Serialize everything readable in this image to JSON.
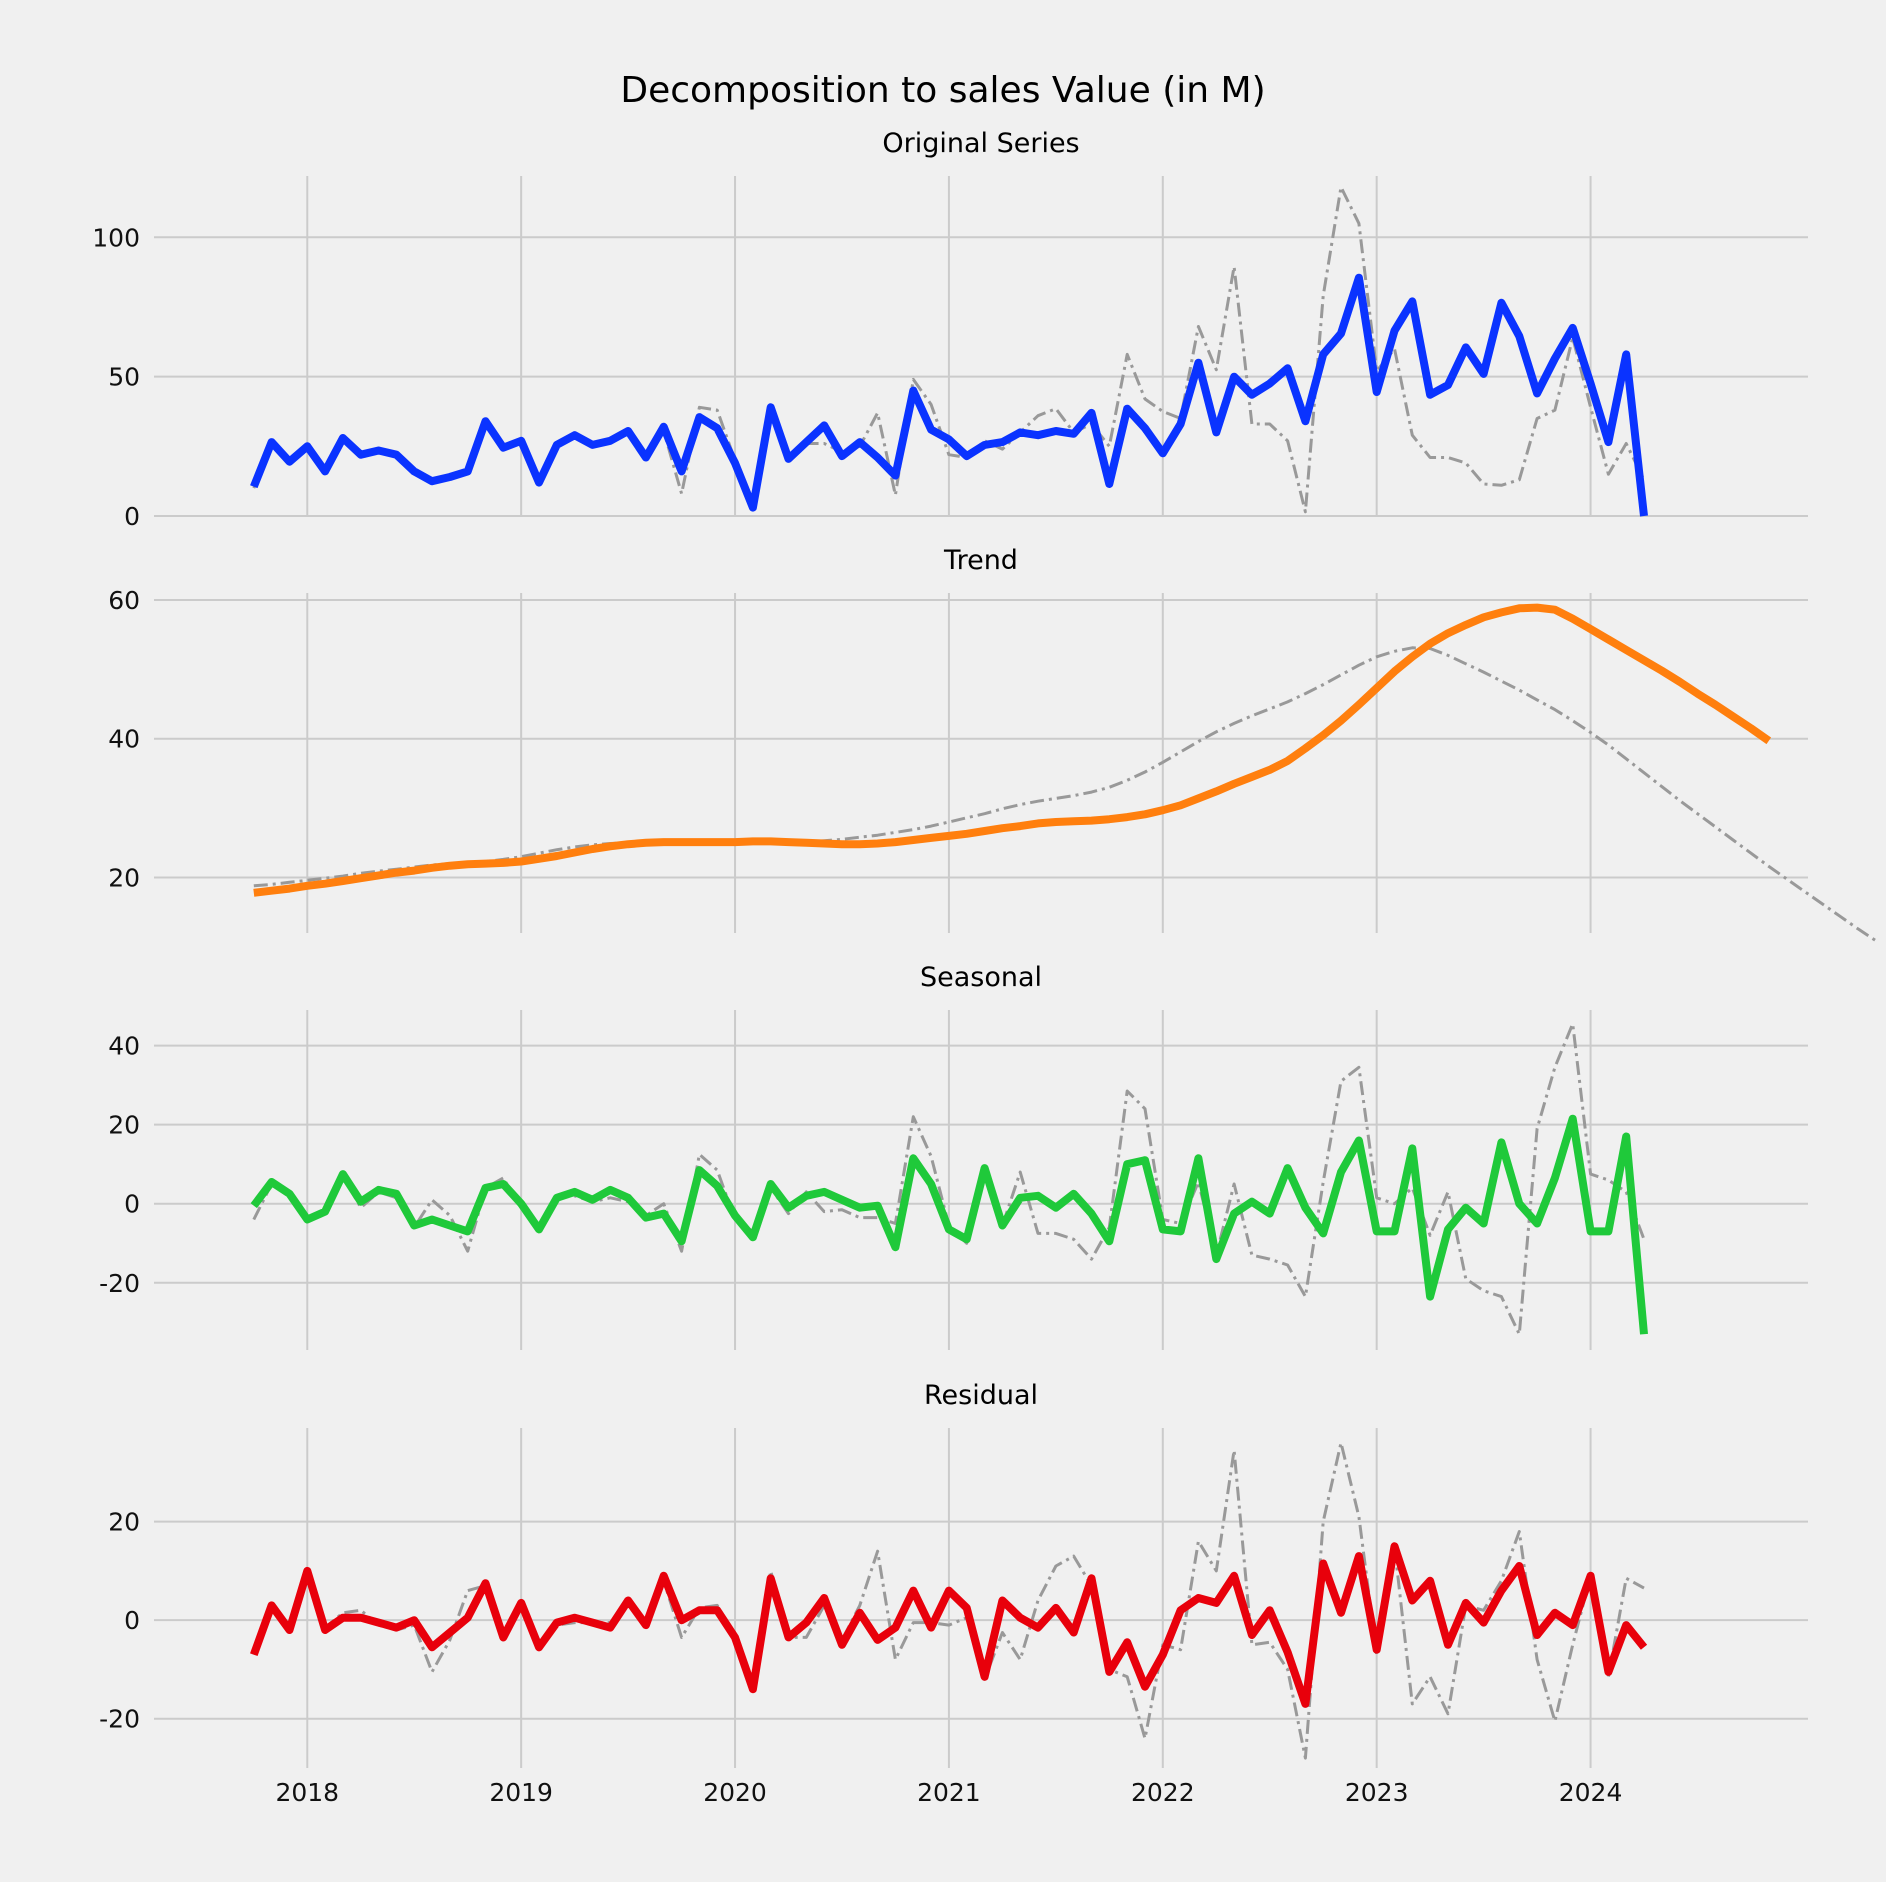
{
  "chart_data": {
    "type": "line",
    "title": "Decomposition to sales Value (in M)",
    "x_start": "2017-10",
    "x_frequency": "monthly",
    "x_tick_labels": [
      "2018",
      "2019",
      "2020",
      "2021",
      "2022",
      "2023",
      "2024"
    ],
    "grid": true,
    "legend": "none",
    "panels": [
      {
        "title": "Original Series",
        "ylim": [
          0,
          122
        ],
        "yticks": [
          0,
          50,
          100
        ],
        "ytick_labels": [
          "0",
          "50",
          "100"
        ],
        "series": [
          {
            "style": "solid",
            "color": "#0a33ff",
            "values": [
              10.5,
              26.5,
              19.5,
              25,
              16,
              28,
              22,
              23.5,
              22,
              16,
              12.5,
              14,
              16,
              34,
              24.5,
              27,
              12,
              25.5,
              29,
              25.5,
              27,
              30.5,
              21,
              32,
              16,
              35.5,
              31.5,
              19,
              3,
              39,
              20.5,
              26.5,
              32.5,
              21.5,
              26.5,
              21,
              14.5,
              45,
              31,
              27.5,
              21.5,
              25.5,
              26.5,
              30,
              29,
              30.5,
              29.5,
              37,
              11.5,
              38.5,
              31.5,
              22.5,
              33,
              55,
              30,
              50,
              43.5,
              47.5,
              53,
              34,
              58,
              65.5,
              85.5,
              44.5,
              66.5,
              77,
              43.5,
              47,
              60.5,
              51,
              76.5,
              64.5,
              44,
              56.5,
              67.5,
              47.5,
              26.5,
              58,
              0
            ]
          },
          {
            "style": "dashdot",
            "color": "#999999",
            "values": [
              10,
              25.5,
              19,
              24.5,
              16.5,
              27.5,
              21,
              23,
              22.5,
              16.5,
              12.5,
              14.5,
              16,
              33.5,
              24,
              27,
              12,
              25,
              28.5,
              25.5,
              27,
              30,
              21.5,
              30.5,
              8,
              39,
              38,
              20,
              3.5,
              38.5,
              20.5,
              26,
              26,
              23,
              25,
              37,
              7.5,
              49,
              40,
              22,
              21,
              27,
              24,
              30,
              36,
              38.5,
              30,
              33,
              25,
              58,
              42,
              37.5,
              35,
              68,
              52.5,
              89.5,
              33,
              33,
              27,
              1.5,
              79,
              118,
              105,
              52,
              60,
              29,
              21,
              21,
              19,
              11.5,
              11,
              13,
              35,
              38,
              64,
              39,
              15,
              26,
              13
            ]
          }
        ]
      },
      {
        "title": "Trend",
        "ylim": [
          12,
          61
        ],
        "yticks": [
          20,
          40,
          60
        ],
        "ytick_labels": [
          "20",
          "40",
          "60"
        ],
        "series": [
          {
            "style": "solid",
            "color": "#ff7f0e",
            "values": [
              17.8,
              18.1,
              18.4,
              18.8,
              19.1,
              19.5,
              19.9,
              20.3,
              20.7,
              21.0,
              21.4,
              21.7,
              21.9,
              22.0,
              22.1,
              22.3,
              22.7,
              23.1,
              23.6,
              24.1,
              24.5,
              24.8,
              25.0,
              25.1,
              25.1,
              25.1,
              25.1,
              25.1,
              25.2,
              25.2,
              25.1,
              25.0,
              24.9,
              24.8,
              24.8,
              24.9,
              25.1,
              25.4,
              25.7,
              26.0,
              26.3,
              26.7,
              27.1,
              27.4,
              27.8,
              28.0,
              28.1,
              28.2,
              28.4,
              28.7,
              29.1,
              29.7,
              30.4,
              31.4,
              32.4,
              33.5,
              34.5,
              35.5,
              36.8,
              38.6,
              40.5,
              42.6,
              44.9,
              47.3,
              49.7,
              51.8,
              53.7,
              55.2,
              56.4,
              57.5,
              58.2,
              58.8,
              58.9,
              58.6,
              57.3,
              55.8,
              54.3,
              52.8,
              51.3,
              49.8,
              48.2,
              46.5,
              44.9,
              43.2,
              41.5,
              39.7
            ]
          },
          {
            "style": "dashdot",
            "color": "#999999",
            "values": [
              18.8,
              19.0,
              19.3,
              19.6,
              19.9,
              20.2,
              20.6,
              20.9,
              21.2,
              21.5,
              21.8,
              22.0,
              22.1,
              22.3,
              22.6,
              23.0,
              23.5,
              24.0,
              24.4,
              24.7,
              24.9,
              25.0,
              25.0,
              25.0,
              25.0,
              25.0,
              25.0,
              25.0,
              25.0,
              25.0,
              25.0,
              25.1,
              25.3,
              25.5,
              25.8,
              26.1,
              26.5,
              26.9,
              27.4,
              28.0,
              28.6,
              29.2,
              29.9,
              30.5,
              31.0,
              31.4,
              31.8,
              32.3,
              33.0,
              34.0,
              35.2,
              36.6,
              38.1,
              39.6,
              41.0,
              42.2,
              43.3,
              44.3,
              45.3,
              46.5,
              47.8,
              49.2,
              50.6,
              51.8,
              52.6,
              53.1,
              53.0,
              52.0,
              50.8,
              49.6,
              48.3,
              47.0,
              45.6,
              44.2,
              42.6,
              40.9,
              39.1,
              37.1,
              35.1,
              33.1,
              31.1,
              29.2,
              27.3,
              25.4,
              23.5,
              21.6,
              19.8,
              18.0,
              16.2,
              14.4,
              12.6,
              10.9
            ]
          }
        ]
      },
      {
        "title": "Seasonal",
        "ylim": [
          -37,
          49
        ],
        "yticks": [
          -20,
          0,
          20,
          40
        ],
        "ytick_labels": [
          "-20",
          "0",
          "20",
          "40"
        ],
        "series": [
          {
            "style": "solid",
            "color": "#1fc93a",
            "values": [
              -0.5,
              5.5,
              2.5,
              -4,
              -2,
              7.5,
              0.5,
              3.5,
              2.5,
              -5.5,
              -4,
              -5.5,
              -7,
              4,
              5,
              0,
              -6.5,
              1.5,
              3,
              1,
              3.5,
              1.5,
              -3.5,
              -2.5,
              -9.5,
              8.5,
              4.5,
              -3,
              -8.5,
              5,
              -1,
              2,
              3,
              1,
              -1,
              -0.5,
              -11,
              11.5,
              5,
              -6.5,
              -9,
              9,
              -5.5,
              1.5,
              2,
              -1,
              2.5,
              -2.5,
              -9.5,
              10,
              11,
              -6.5,
              -7,
              11.5,
              -14,
              -2.5,
              0.5,
              -2.5,
              9,
              -1,
              -7.5,
              8,
              16,
              -7,
              -7,
              14,
              -23.5,
              -6.5,
              -1,
              -5,
              15.5,
              0,
              -5,
              6.5,
              21.5,
              -7,
              -7,
              17,
              -33
            ]
          },
          {
            "style": "dashdot",
            "color": "#999999",
            "values": [
              -4,
              5,
              2,
              -4,
              -2,
              7,
              -1,
              3,
              1.5,
              -6,
              1,
              -3,
              -12,
              4,
              6.5,
              -1,
              -6,
              1.5,
              2,
              0.5,
              1.5,
              0.5,
              -3,
              0,
              -12,
              12.5,
              8.5,
              -4,
              -7,
              4,
              -2.5,
              3,
              -2,
              -1.5,
              -3.5,
              -3.5,
              -5,
              22,
              12,
              -5.5,
              -10,
              7,
              -5.5,
              8,
              -7.5,
              -7.5,
              -9,
              -14,
              -6,
              28.5,
              24,
              -4,
              -5,
              5.5,
              -13,
              5,
              -13,
              -14,
              -15.5,
              -23.5,
              5.5,
              31,
              34.5,
              1.5,
              0,
              4,
              -8,
              3,
              -19,
              -22,
              -23.5,
              -33,
              19,
              34.5,
              45.5,
              7.5,
              6,
              3,
              -9
            ]
          }
        ]
      },
      {
        "title": "Residual",
        "ylim": [
          -30,
          39
        ],
        "yticks": [
          -20,
          0,
          20
        ],
        "ytick_labels": [
          "-20",
          "0",
          "20"
        ],
        "series": [
          {
            "style": "solid",
            "color": "#e8000b",
            "values": [
              -7,
              3,
              -2,
              10,
              -2,
              0.5,
              0.5,
              -0.5,
              -1.5,
              0,
              -5.5,
              -2.5,
              0.5,
              7.5,
              -3.5,
              3.5,
              -5.5,
              -0.5,
              0.5,
              -0.5,
              -1.5,
              4,
              -1,
              9,
              0,
              2,
              2,
              -3.5,
              -14,
              8.5,
              -3.5,
              -0.5,
              4.5,
              -5,
              1.5,
              -4,
              -1.5,
              6,
              -1.5,
              6,
              2.5,
              -11.5,
              4,
              0.5,
              -1.5,
              2.5,
              -2.5,
              8.5,
              -10.5,
              -4.5,
              -13.5,
              -7,
              2,
              4.5,
              3.5,
              9,
              -3,
              2,
              -6.5,
              -17,
              11.5,
              1.5,
              13,
              -6,
              15,
              4,
              8,
              -5,
              3.5,
              -0.5,
              6,
              11,
              -3,
              1.5,
              -1,
              9,
              -10.5,
              -1,
              -5.5
            ]
          },
          {
            "style": "dashdot",
            "color": "#999999",
            "values": [
              -7,
              2.5,
              -1,
              10,
              -1.5,
              1.5,
              2,
              -1,
              -2,
              -1,
              -10.5,
              -4,
              6,
              7,
              -4,
              3,
              -5,
              -1,
              -0.5,
              -0.5,
              -0.5,
              3,
              -0.5,
              8,
              -3.5,
              2.5,
              3,
              -3,
              -13,
              10,
              -3.5,
              -3.5,
              3,
              -4,
              3,
              14,
              -8,
              -0.5,
              -0.5,
              -1,
              0.5,
              -12,
              -2.5,
              -8,
              4,
              11,
              13,
              7,
              -10,
              -11.5,
              -24,
              -5,
              -6,
              16,
              10,
              34.5,
              -5,
              -4.5,
              -10,
              -28,
              20,
              36,
              21,
              -7,
              15,
              -17,
              -11.5,
              -19,
              3,
              2,
              8,
              18,
              -8,
              -20.5,
              -5,
              9,
              -11.5,
              8.5,
              6.5
            ]
          }
        ]
      }
    ]
  }
}
